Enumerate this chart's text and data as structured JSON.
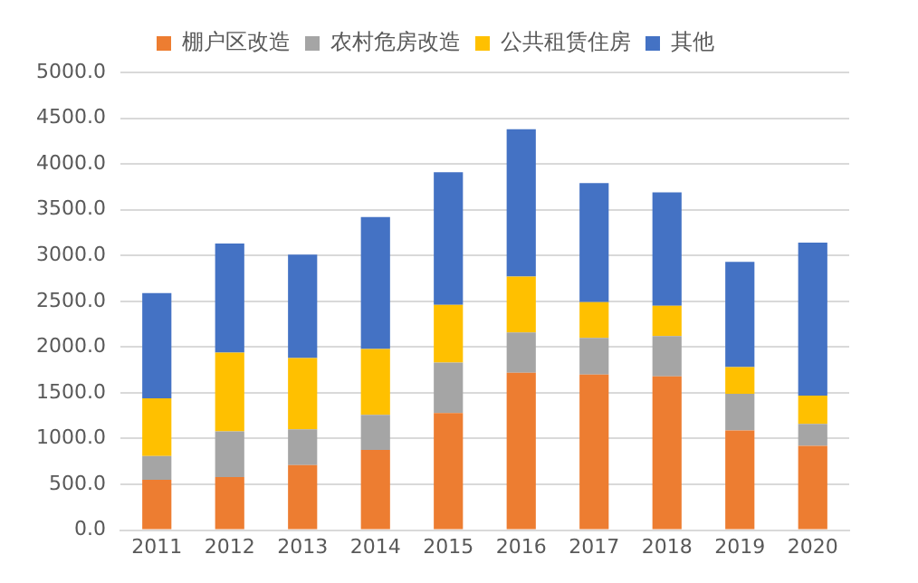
{
  "chart_data": {
    "type": "bar",
    "stacked": true,
    "categories": [
      "2011",
      "2012",
      "2013",
      "2014",
      "2015",
      "2016",
      "2017",
      "2018",
      "2019",
      "2020"
    ],
    "series": [
      {
        "name": "棚户区改造",
        "color": "#ed7d31",
        "values": [
          550,
          580,
          710,
          875,
          1280,
          1720,
          1700,
          1680,
          1090,
          920
        ]
      },
      {
        "name": "农村危房改造",
        "color": "#a5a5a5",
        "values": [
          260,
          500,
          390,
          385,
          550,
          440,
          400,
          440,
          400,
          240
        ]
      },
      {
        "name": "公共租赁住房",
        "color": "#ffc000",
        "values": [
          630,
          860,
          780,
          720,
          630,
          610,
          390,
          330,
          290,
          310
        ]
      },
      {
        "name": "其他",
        "color": "#4472c4",
        "values": [
          1150,
          1190,
          1130,
          1440,
          1450,
          1610,
          1300,
          1240,
          1150,
          1670
        ]
      }
    ],
    "ylim": [
      0,
      5000
    ],
    "yticks": [
      {
        "value": 0,
        "label": "0.0"
      },
      {
        "value": 500,
        "label": "500.0"
      },
      {
        "value": 1000,
        "label": "1000.0"
      },
      {
        "value": 1500,
        "label": "1500.0"
      },
      {
        "value": 2000,
        "label": "2000.0"
      },
      {
        "value": 2500,
        "label": "2500.0"
      },
      {
        "value": 3000,
        "label": "3000.0"
      },
      {
        "value": 3500,
        "label": "3500.0"
      },
      {
        "value": 4000,
        "label": "4000.0"
      },
      {
        "value": 4500,
        "label": "4500.0"
      },
      {
        "value": 5000,
        "label": "5000.0"
      }
    ],
    "grid": "y",
    "legend": "top"
  }
}
